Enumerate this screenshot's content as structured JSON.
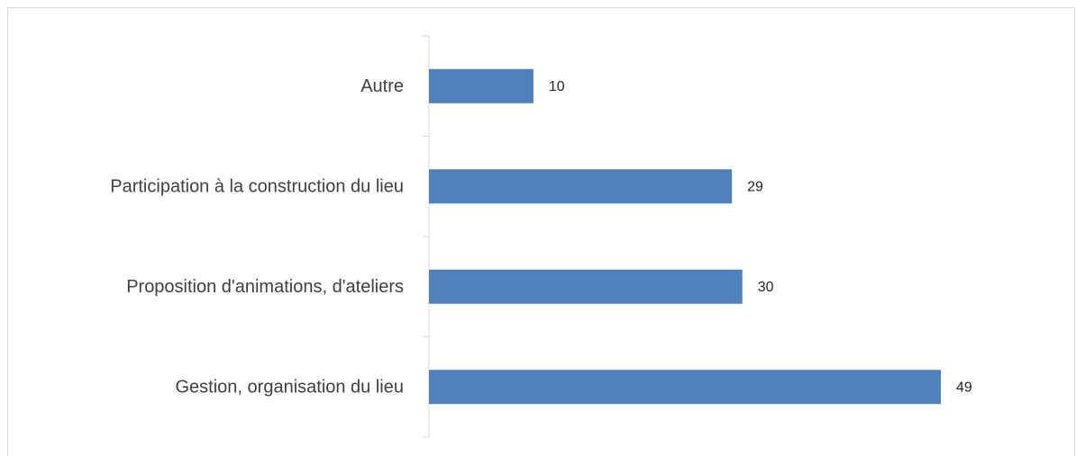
{
  "chart_data": {
    "type": "hbar",
    "categories": [
      "Autre",
      "Participation à la construction du lieu",
      "Proposition d'animations, d'ateliers",
      "Gestion, organisation du lieu"
    ],
    "values": [
      10,
      29,
      30,
      49
    ],
    "color": "#4f81bd"
  }
}
